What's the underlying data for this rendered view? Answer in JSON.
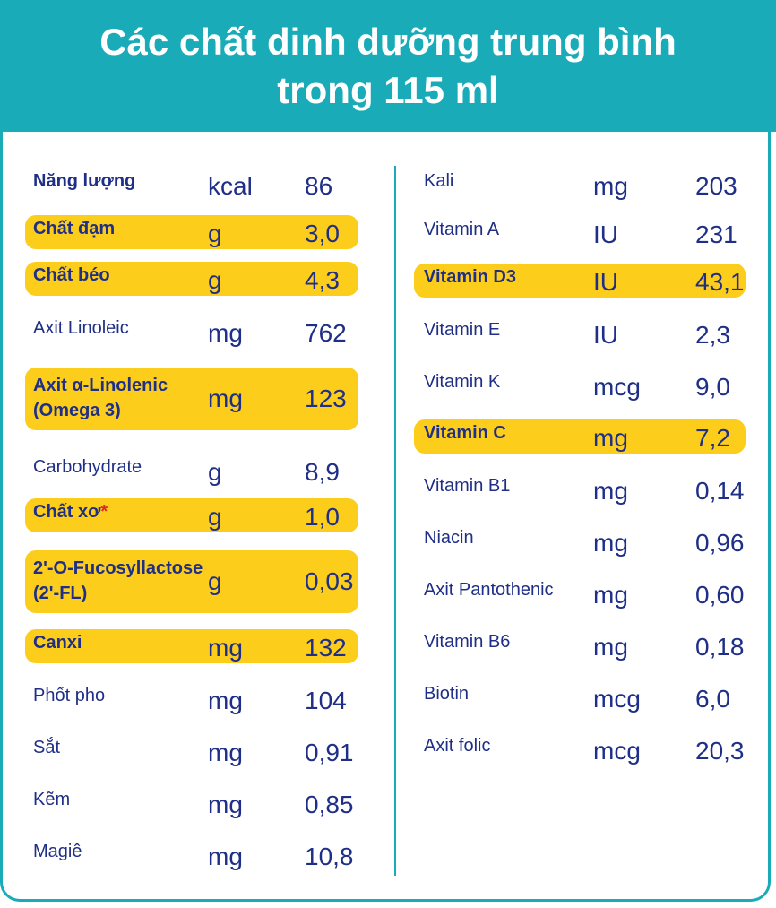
{
  "header": {
    "line1": "Các chất dinh dưỡng trung bình",
    "line2": "trong 115 ml"
  },
  "left": [
    {
      "name": "Năng lượng",
      "unit": "kcal",
      "value": "86",
      "bold": true,
      "highlight": false
    },
    {
      "name": "Chất đạm",
      "unit": "g",
      "value": "3,0",
      "bold": true,
      "highlight": true
    },
    {
      "name": "Chất béo",
      "unit": "g",
      "value": "4,3",
      "bold": true,
      "highlight": true
    },
    {
      "name": "Axit Linoleic",
      "unit": "mg",
      "value": "762",
      "bold": false,
      "highlight": false
    },
    {
      "name": "Axit α-Linolenic",
      "name2": "(Omega 3)",
      "unit": "mg",
      "value": "123",
      "bold": true,
      "highlight": true
    },
    {
      "name": "Carbohydrate",
      "unit": "g",
      "value": "8,9",
      "bold": false,
      "highlight": false
    },
    {
      "name": "Chất xơ",
      "star": "*",
      "unit": "g",
      "value": "1,0",
      "bold": true,
      "highlight": true
    },
    {
      "name": "2'-O-Fucosyllactose",
      "name2": "(2'-FL)",
      "unit": "g",
      "value": "0,03",
      "bold": true,
      "highlight": true
    },
    {
      "name": "Canxi",
      "unit": "mg",
      "value": "132",
      "bold": true,
      "highlight": true
    },
    {
      "name": "Phốt pho",
      "unit": "mg",
      "value": "104",
      "bold": false,
      "highlight": false
    },
    {
      "name": "Sắt",
      "unit": "mg",
      "value": "0,91",
      "bold": false,
      "highlight": false
    },
    {
      "name": "Kẽm",
      "unit": "mg",
      "value": "0,85",
      "bold": false,
      "highlight": false
    },
    {
      "name": "Magiê",
      "unit": "mg",
      "value": "10,8",
      "bold": false,
      "highlight": false
    }
  ],
  "right": [
    {
      "name": "Kali",
      "unit": "mg",
      "value": "203",
      "bold": false,
      "highlight": false
    },
    {
      "name": "Vitamin A",
      "unit": "IU",
      "value": "231",
      "bold": false,
      "highlight": false
    },
    {
      "name": "Vitamin D3",
      "unit": "IU",
      "value": "43,1",
      "bold": true,
      "highlight": true
    },
    {
      "name": "Vitamin E",
      "unit": "IU",
      "value": "2,3",
      "bold": false,
      "highlight": false
    },
    {
      "name": "Vitamin K",
      "unit": "mcg",
      "value": "9,0",
      "bold": false,
      "highlight": false
    },
    {
      "name": "Vitamin C",
      "unit": "mg",
      "value": "7,2",
      "bold": true,
      "highlight": true
    },
    {
      "name": "Vitamin B1",
      "unit": "mg",
      "value": "0,14",
      "bold": false,
      "highlight": false
    },
    {
      "name": "Niacin",
      "unit": "mg",
      "value": "0,96",
      "bold": false,
      "highlight": false
    },
    {
      "name": "Axit Pantothenic",
      "unit": "mg",
      "value": "0,60",
      "bold": false,
      "highlight": false
    },
    {
      "name": "Vitamin B6",
      "unit": "mg",
      "value": "0,18",
      "bold": false,
      "highlight": false
    },
    {
      "name": "Biotin",
      "unit": "mcg",
      "value": "6,0",
      "bold": false,
      "highlight": false
    },
    {
      "name": "Axit folic",
      "unit": "mcg",
      "value": "20,3",
      "bold": false,
      "highlight": false
    }
  ],
  "colors": {
    "header_bg": "#1aabb9",
    "highlight": "#fccd1b",
    "text": "#1f2f87",
    "star": "#e3262b"
  }
}
